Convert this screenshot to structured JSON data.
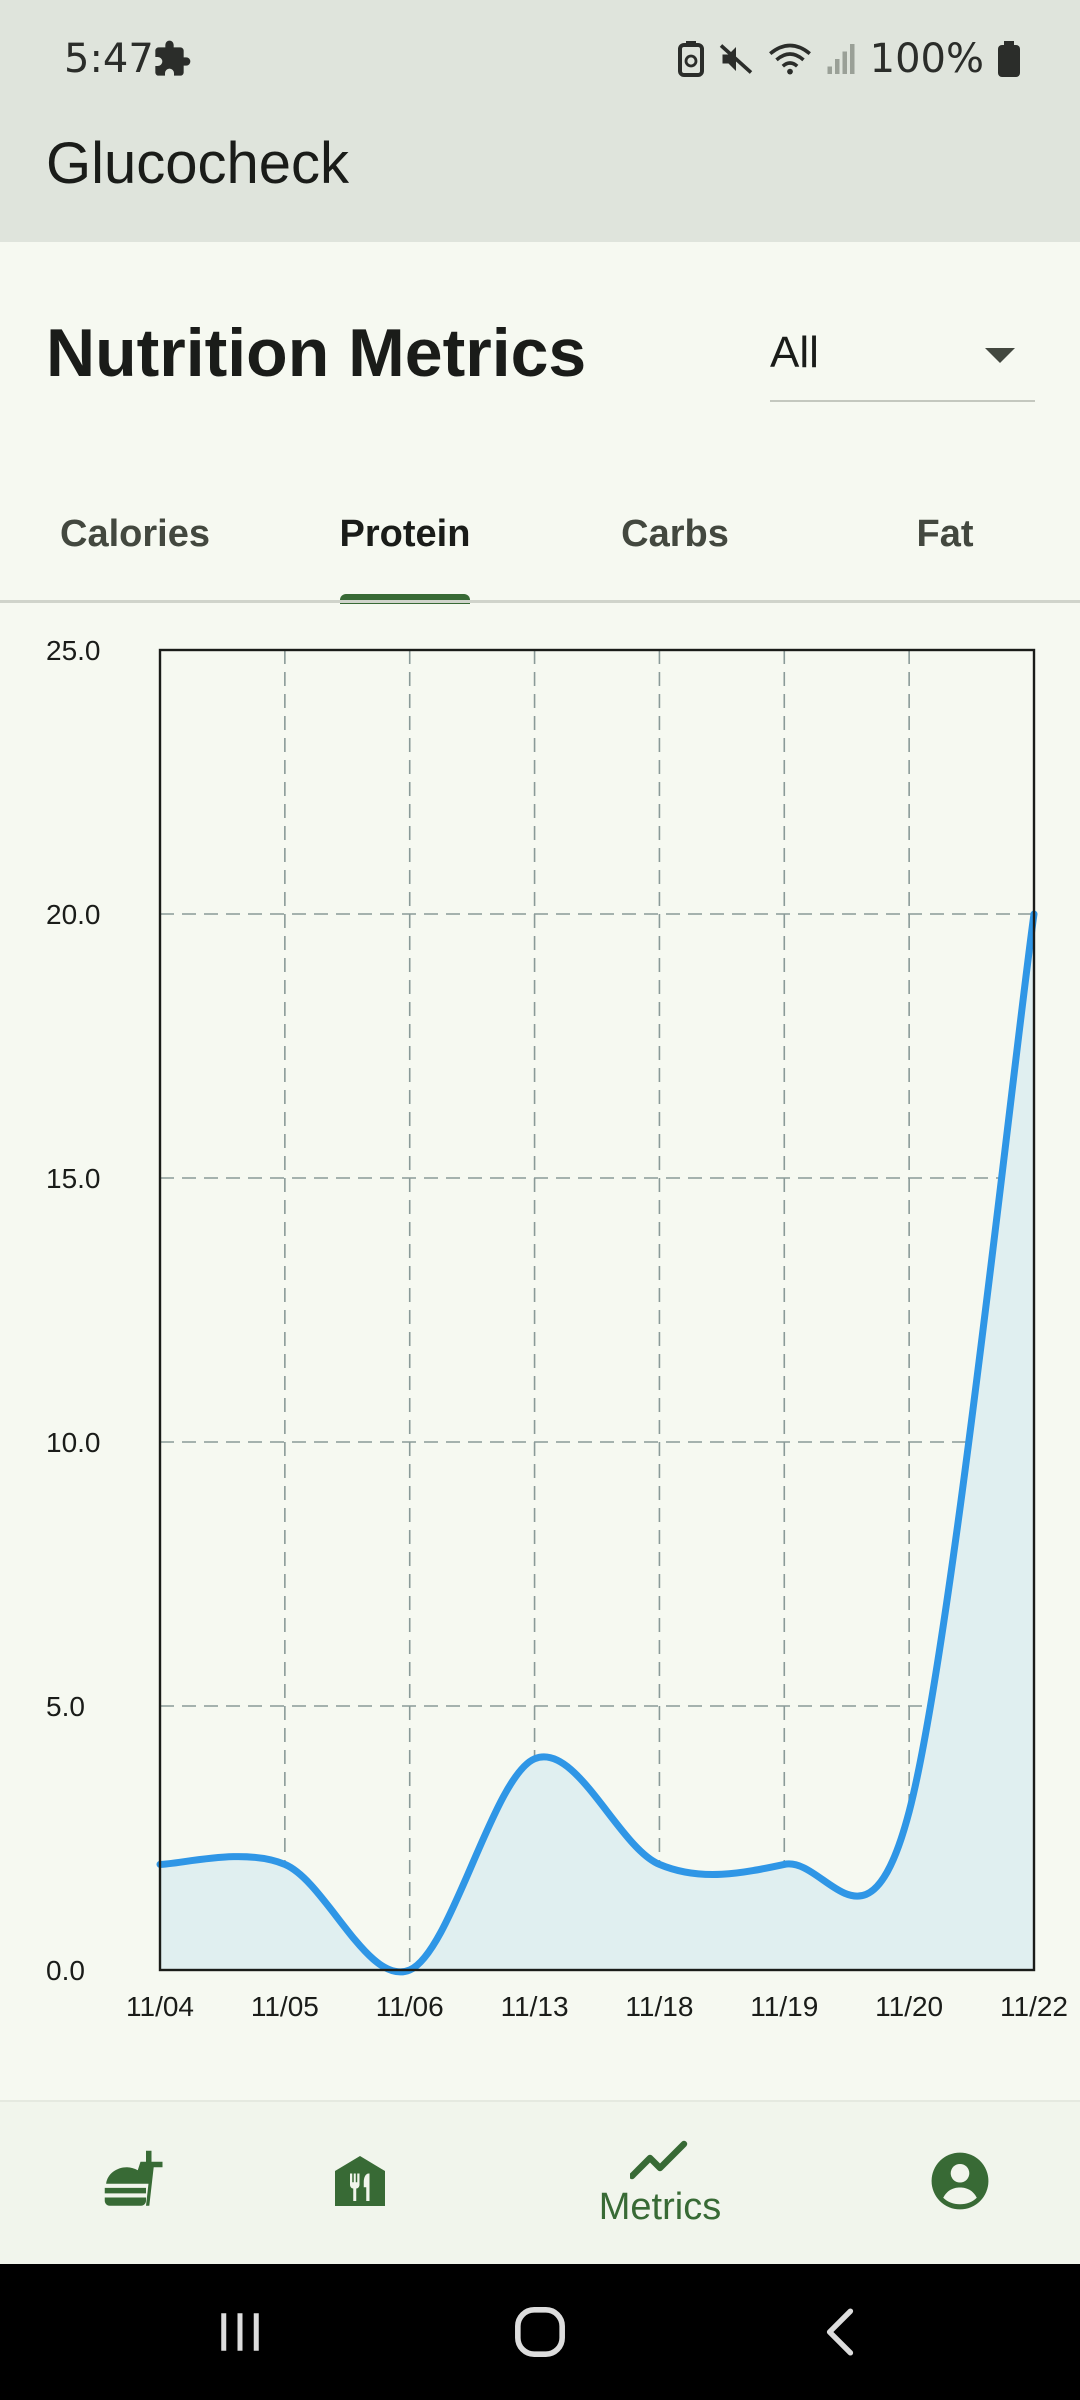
{
  "status_bar": {
    "time": "5:47",
    "battery_percent": "100%",
    "icons": [
      "puzzle-icon",
      "battery-saver-icon",
      "mute-icon",
      "wifi-icon",
      "signal-icon",
      "battery-icon"
    ]
  },
  "app": {
    "title": "Glucocheck"
  },
  "header": {
    "title": "Nutrition Metrics",
    "filter": {
      "value": "All"
    }
  },
  "tabs": [
    {
      "label": "Calories"
    },
    {
      "label": "Protein"
    },
    {
      "label": "Carbs"
    },
    {
      "label": "Fat"
    }
  ],
  "active_tab": "Protein",
  "chart_data": {
    "type": "line",
    "categories": [
      "11/04",
      "11/05",
      "11/06",
      "11/13",
      "11/18",
      "11/19",
      "11/20",
      "11/22"
    ],
    "series": [
      {
        "values": [
          2.0,
          2.0,
          0.0,
          4.0,
          2.0,
          2.0,
          3.0,
          20.0
        ]
      }
    ],
    "y_ticks": [
      "0.0",
      "5.0",
      "10.0",
      "15.0",
      "20.0",
      "25.0"
    ],
    "ylim": [
      0,
      25
    ],
    "grid": true,
    "line_color": "#2f96e6",
    "fill_color": "#e0eff0"
  },
  "bottom_nav": {
    "items": [
      {
        "icon": "fastfood-icon",
        "label": ""
      },
      {
        "icon": "restaurant-icon",
        "label": ""
      },
      {
        "icon": "trending-up-icon",
        "label": "Metrics"
      },
      {
        "icon": "account-circle-icon",
        "label": ""
      }
    ],
    "accent": "#386a35"
  },
  "system_nav": [
    "recents-icon",
    "home-icon",
    "back-icon"
  ]
}
